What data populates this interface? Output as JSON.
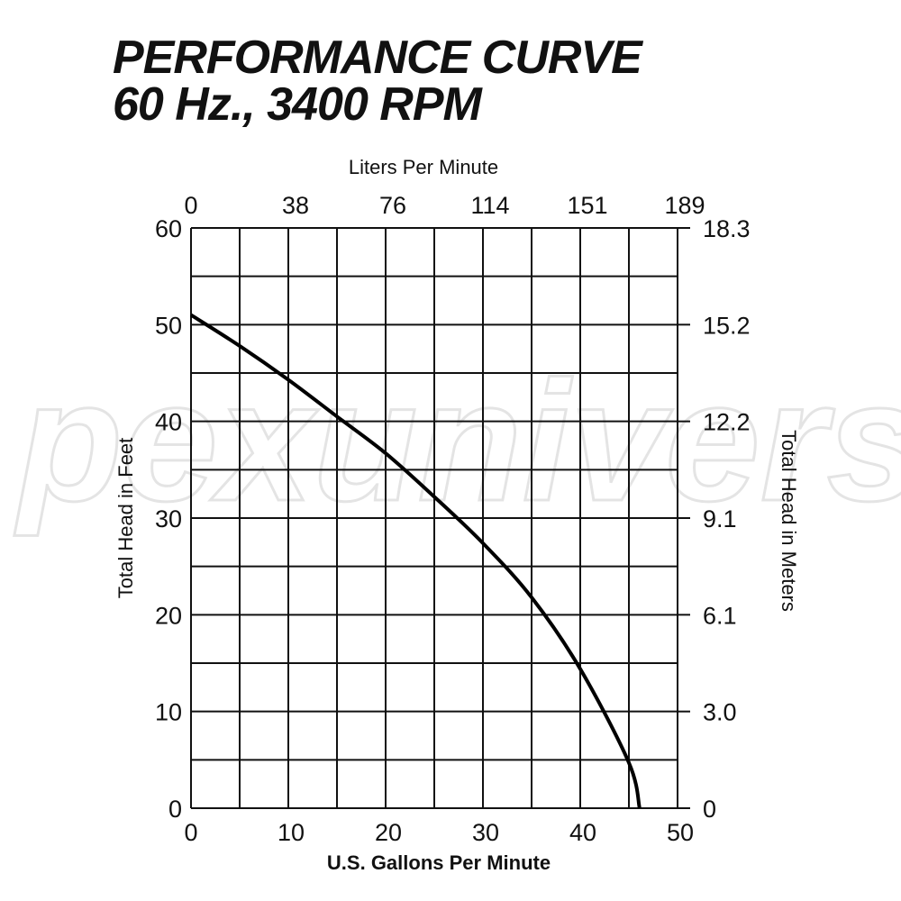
{
  "title_line1": "PERFORMANCE CURVE",
  "title_line2": "60 Hz., 3400 RPM",
  "watermark": "pexuniverse",
  "chart_data": {
    "type": "line",
    "title": "PERFORMANCE CURVE 60 Hz., 3400 RPM",
    "xlabel": "U.S. Gallons Per Minute",
    "x2label": "Liters Per Minute",
    "ylabel": "Total Head in Feet",
    "y2label": "Total Head in Meters",
    "xlim": [
      0,
      50
    ],
    "ylim": [
      0,
      60
    ],
    "grid": true,
    "x_ticks": [
      "0",
      "10",
      "20",
      "30",
      "40",
      "50"
    ],
    "x_tick_values": [
      0,
      10,
      20,
      30,
      40,
      50
    ],
    "x2_ticks": [
      "0",
      "38",
      "76",
      "114",
      "151",
      "189"
    ],
    "y_ticks": [
      "0",
      "10",
      "20",
      "30",
      "40",
      "50",
      "60"
    ],
    "y_tick_values": [
      0,
      10,
      20,
      30,
      40,
      50,
      60
    ],
    "y2_ticks": [
      "0",
      "3.0",
      "6.1",
      "9.1",
      "12.2",
      "15.2",
      "18.3"
    ],
    "series": [
      {
        "color": "#000000",
        "x": [
          0,
          5,
          10,
          15,
          20,
          25,
          30,
          35,
          40,
          45,
          46.1
        ],
        "y": [
          51.0,
          47.8,
          44.3,
          40.5,
          36.7,
          32.2,
          27.4,
          21.8,
          14.4,
          4.7,
          0
        ]
      }
    ]
  }
}
